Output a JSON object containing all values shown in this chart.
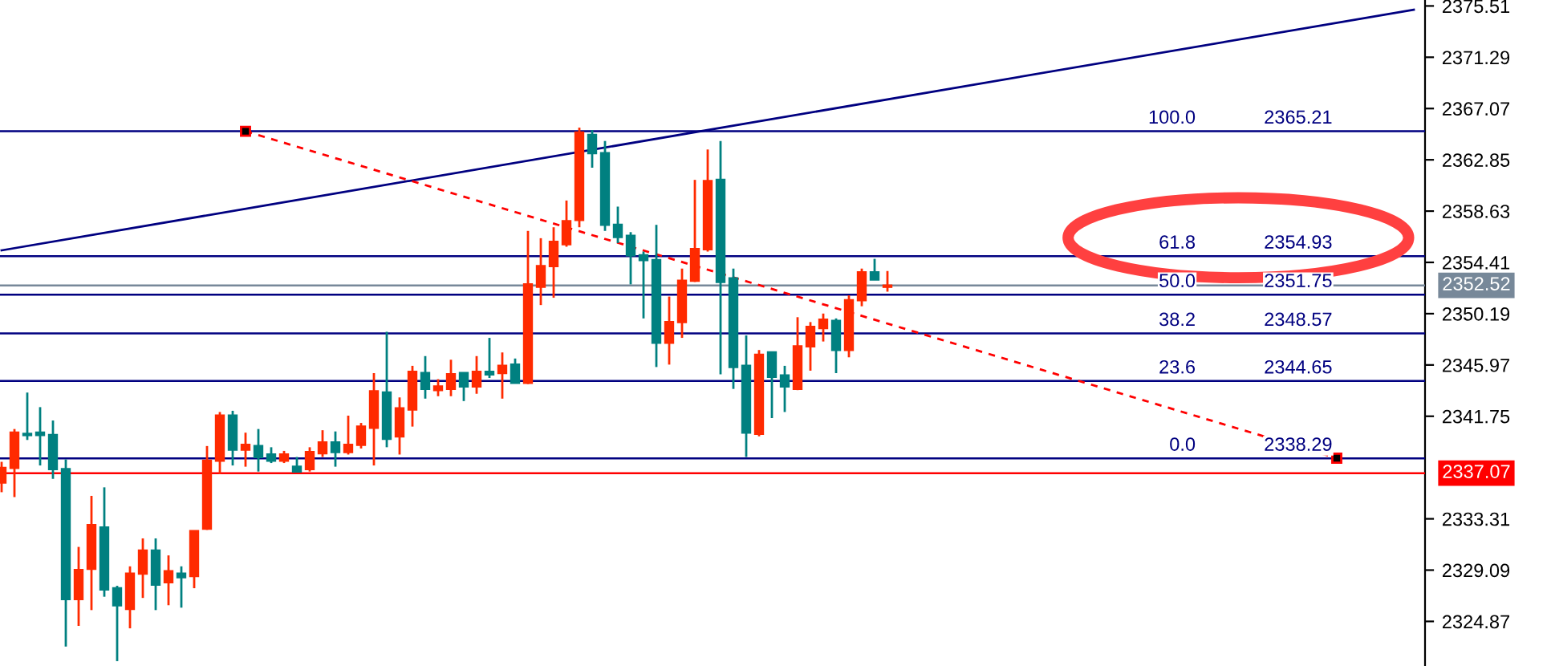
{
  "chart_data": {
    "type": "candlestick",
    "categories": [
      null,
      null,
      null,
      null,
      null,
      null,
      null,
      null,
      null,
      null,
      null,
      null,
      null,
      null,
      null,
      null,
      null,
      null,
      null,
      null,
      null,
      null,
      null,
      null,
      null,
      null,
      null,
      null,
      null,
      null,
      null,
      null,
      null,
      null,
      null,
      null,
      null,
      null,
      null,
      null,
      null,
      null,
      null,
      null,
      null,
      null,
      null,
      null,
      null,
      null,
      null,
      null,
      null,
      null,
      null,
      null,
      null,
      null,
      null,
      null,
      null,
      null,
      null,
      null,
      null,
      null,
      null,
      null,
      null,
      null,
      null,
      null,
      null,
      null,
      null,
      null,
      null,
      null,
      null,
      null,
      null,
      null,
      null,
      null,
      null,
      null,
      null,
      null,
      null,
      null,
      null,
      null,
      null,
      null,
      null,
      null,
      null,
      null,
      null,
      null,
      null,
      null,
      null,
      null,
      null,
      null,
      null,
      null,
      null,
      null,
      null
    ],
    "ohlc": [
      [
        2336.3,
        2338.0,
        2335.5,
        2337.5
      ],
      [
        2337.5,
        2340.7,
        2335.1,
        2340.4
      ],
      [
        2340.3,
        2343.7,
        2339.8,
        2340.2
      ],
      [
        2340.4,
        2342.5,
        2337.7,
        2340.2
      ],
      [
        2340.2,
        2341.4,
        2336.6,
        2337.4
      ],
      [
        2337.4,
        2338.2,
        2322.8,
        2326.7
      ],
      [
        2326.7,
        2331.0,
        2324.5,
        2329.1
      ],
      [
        2329.2,
        2335.2,
        2325.8,
        2332.8
      ],
      [
        2332.6,
        2335.9,
        2326.9,
        2327.5
      ],
      [
        2327.6,
        2327.8,
        2321.6,
        2326.2
      ],
      [
        2325.9,
        2329.4,
        2324.3,
        2328.8
      ],
      [
        2328.8,
        2331.7,
        2326.8,
        2330.7
      ],
      [
        2330.7,
        2331.7,
        2325.8,
        2327.9
      ],
      [
        2328.1,
        2330.3,
        2326.2,
        2329.0
      ],
      [
        2328.8,
        2329.4,
        2326.0,
        2328.5
      ],
      [
        2328.6,
        2332.3,
        2327.6,
        2332.3
      ],
      [
        2332.5,
        2339.3,
        2332.4,
        2338.1
      ],
      [
        2338.1,
        2342.1,
        2337.0,
        2341.8
      ],
      [
        2341.8,
        2342.2,
        2337.7,
        2339.0
      ],
      [
        2339.0,
        2340.4,
        2337.6,
        2339.4
      ],
      [
        2339.3,
        2340.7,
        2337.2,
        2338.4
      ],
      [
        2338.6,
        2339.2,
        2337.9,
        2338.1
      ],
      [
        2338.1,
        2338.9,
        2337.9,
        2338.6
      ],
      [
        2337.6,
        2338.4,
        2337.2,
        2337.2
      ],
      [
        2337.4,
        2339.2,
        2337.2,
        2338.8
      ],
      [
        2338.7,
        2340.6,
        2338.4,
        2339.6
      ],
      [
        2339.6,
        2340.5,
        2337.6,
        2338.8
      ],
      [
        2338.8,
        2341.8,
        2338.6,
        2339.4
      ],
      [
        2339.4,
        2341.2,
        2339.1,
        2340.9
      ],
      [
        2340.8,
        2345.3,
        2337.7,
        2343.8
      ],
      [
        2343.7,
        2348.7,
        2339.2,
        2339.9
      ],
      [
        2340.1,
        2343.3,
        2338.6,
        2342.4
      ],
      [
        2342.3,
        2345.9,
        2340.9,
        2345.4
      ],
      [
        2345.3,
        2346.7,
        2343.2,
        2344.0
      ],
      [
        2343.9,
        2344.8,
        2343.4,
        2344.2
      ],
      [
        2344.0,
        2346.4,
        2343.4,
        2345.2
      ],
      [
        2345.3,
        2345.3,
        2343.0,
        2344.2
      ],
      [
        2344.2,
        2346.7,
        2343.6,
        2345.4
      ],
      [
        2345.4,
        2348.2,
        2344.9,
        2345.2
      ],
      [
        2345.3,
        2347.0,
        2343.2,
        2345.9
      ],
      [
        2346.0,
        2346.5,
        2344.5,
        2344.5
      ],
      [
        2344.5,
        2357.0,
        2344.4,
        2352.6
      ],
      [
        2352.4,
        2356.4,
        2350.9,
        2354.1
      ],
      [
        2354.1,
        2357.3,
        2351.5,
        2356.1
      ],
      [
        2355.9,
        2359.5,
        2355.7,
        2357.8
      ],
      [
        2357.9,
        2365.5,
        2357.3,
        2365.1
      ],
      [
        2364.9,
        2365.3,
        2362.2,
        2363.4
      ],
      [
        2363.4,
        2364.4,
        2357.0,
        2357.5
      ],
      [
        2357.5,
        2359.0,
        2356.0,
        2356.5
      ],
      [
        2356.6,
        2356.9,
        2352.6,
        2355.0
      ],
      [
        2355.0,
        2355.3,
        2349.8,
        2354.6
      ],
      [
        2354.6,
        2357.5,
        2345.8,
        2347.8
      ],
      [
        2347.8,
        2351.6,
        2346.0,
        2349.5
      ],
      [
        2349.5,
        2353.9,
        2348.2,
        2352.9
      ],
      [
        2352.9,
        2361.2,
        2352.8,
        2355.5
      ],
      [
        2355.5,
        2363.7,
        2355.3,
        2361.1
      ],
      [
        2361.2,
        2364.4,
        2345.2,
        2352.8
      ],
      [
        2353.1,
        2353.9,
        2344.0,
        2345.8
      ],
      [
        2345.9,
        2348.4,
        2338.4,
        2340.4
      ],
      [
        2340.3,
        2347.2,
        2340.1,
        2346.8
      ],
      [
        2347.0,
        2347.0,
        2341.6,
        2345.0
      ],
      [
        2345.1,
        2345.9,
        2342.1,
        2344.2
      ],
      [
        2344.0,
        2349.9,
        2343.9,
        2347.5
      ],
      [
        2347.5,
        2349.5,
        2345.5,
        2349.1
      ],
      [
        2349.0,
        2350.2,
        2347.9,
        2349.7
      ],
      [
        2349.6,
        2349.8,
        2345.3,
        2347.2
      ],
      [
        2347.2,
        2351.7,
        2346.6,
        2351.3
      ],
      [
        2351.3,
        2353.9,
        2350.8,
        2353.6
      ],
      [
        2353.6,
        2354.7,
        2353.0,
        2353.0
      ],
      [
        2352.4,
        2353.7,
        2352.0,
        2352.5
      ],
      null,
      null,
      null,
      null,
      null,
      null,
      null,
      null,
      null,
      null,
      null,
      null,
      null,
      null,
      null,
      null,
      null,
      null,
      null,
      null,
      null,
      null,
      null,
      null,
      null,
      null,
      null,
      null,
      null,
      null,
      null,
      null,
      null,
      null,
      null,
      null,
      null,
      null,
      null,
      null,
      null
    ],
    "colors": [
      "#ff2a00",
      "#ff2a00",
      "#008080",
      "#008080",
      "#008080",
      "#008080",
      "#ff2a00",
      "#ff2a00",
      "#008080",
      "#008080",
      "#ff2a00",
      "#ff2a00",
      "#008080",
      "#ff2a00",
      "#008080",
      "#ff2a00",
      "#ff2a00",
      "#ff2a00",
      "#008080",
      "#ff2a00",
      "#008080",
      "#008080",
      "#ff2a00",
      "#008080",
      "#ff2a00",
      "#ff2a00",
      "#008080",
      "#ff2a00",
      "#ff2a00",
      "#ff2a00",
      "#008080",
      "#ff2a00",
      "#ff2a00",
      "#008080",
      "#ff2a00",
      "#ff2a00",
      "#008080",
      "#ff2a00",
      "#008080",
      "#ff2a00",
      "#008080",
      "#ff2a00",
      "#ff2a00",
      "#ff2a00",
      "#ff2a00",
      "#ff2a00",
      "#008080",
      "#008080",
      "#008080",
      "#008080",
      "#008080",
      "#008080",
      "#ff2a00",
      "#ff2a00",
      "#ff2a00",
      "#ff2a00",
      "#008080",
      "#008080",
      "#008080",
      "#ff2a00",
      "#008080",
      "#008080",
      "#ff2a00",
      "#ff2a00",
      "#ff2a00",
      "#008080",
      "#ff2a00",
      "#ff2a00",
      "#008080",
      "#ff2a00",
      null,
      null,
      null,
      null,
      null,
      null,
      null,
      null,
      null,
      null,
      null,
      null,
      null,
      null,
      null,
      null,
      null,
      null,
      null,
      null,
      null,
      null,
      null,
      null,
      null,
      null,
      null,
      null,
      null,
      null,
      null,
      null,
      null,
      null,
      null,
      null,
      null,
      null,
      null,
      null,
      null
    ],
    "series": [
      {
        "type": "line",
        "color": "#000080",
        "line_style": "solid",
        "marker": "none",
        "values": [
          2355.4,
          null,
          null,
          null,
          null,
          null,
          null,
          null,
          null,
          null,
          null,
          null,
          null,
          null,
          null,
          null,
          null,
          null,
          null,
          null,
          null,
          null,
          null,
          null,
          null,
          null,
          null,
          null,
          null,
          null,
          null,
          null,
          null,
          null,
          null,
          null,
          null,
          null,
          null,
          null,
          null,
          null,
          null,
          null,
          null,
          null,
          null,
          null,
          null,
          null,
          null,
          null,
          null,
          null,
          null,
          null,
          null,
          null,
          null,
          null,
          null,
          null,
          null,
          null,
          null,
          null,
          null,
          null,
          null,
          null,
          null,
          null,
          null,
          null,
          null,
          null,
          null,
          null,
          null,
          null,
          null,
          null,
          null,
          null,
          null,
          null,
          null,
          null,
          null,
          null,
          null,
          null,
          null,
          null,
          null,
          null,
          null,
          null,
          null,
          null,
          null,
          null,
          null,
          null,
          null,
          null,
          null,
          null,
          null,
          null,
          2375.2
        ]
      },
      {
        "type": "line",
        "color": "#ff0000",
        "line_style": "dashed",
        "marker": "square",
        "values": [
          null,
          null,
          null,
          null,
          null,
          null,
          null,
          null,
          null,
          null,
          null,
          null,
          null,
          null,
          null,
          null,
          null,
          null,
          null,
          2365.2,
          null,
          null,
          null,
          null,
          null,
          null,
          null,
          null,
          null,
          null,
          null,
          null,
          null,
          null,
          null,
          null,
          null,
          null,
          null,
          null,
          null,
          null,
          null,
          null,
          null,
          null,
          null,
          null,
          null,
          null,
          null,
          null,
          null,
          null,
          null,
          null,
          null,
          null,
          null,
          null,
          null,
          null,
          null,
          null,
          null,
          null,
          null,
          null,
          null,
          null,
          null,
          null,
          null,
          null,
          null,
          null,
          null,
          null,
          null,
          null,
          null,
          null,
          null,
          null,
          null,
          null,
          null,
          null,
          null,
          null,
          null,
          null,
          null,
          null,
          null,
          null,
          null,
          null,
          null,
          null,
          null,
          null,
          null,
          null,
          2338.3,
          null,
          null,
          null,
          null,
          null,
          null
        ]
      }
    ],
    "ref_lines": [
      {
        "axis": "y",
        "value": 2365.21,
        "color": "#000080"
      },
      {
        "axis": "y",
        "value": 2354.93,
        "color": "#000080"
      },
      {
        "axis": "y",
        "value": 2351.75,
        "color": "#000080"
      },
      {
        "axis": "y",
        "value": 2348.57,
        "color": "#000080"
      },
      {
        "axis": "y",
        "value": 2344.65,
        "color": "#000080"
      },
      {
        "axis": "y",
        "value": 2338.29,
        "color": "#000080"
      },
      {
        "axis": "y",
        "value": 2352.52,
        "label": "2352.52",
        "color": "#778899"
      },
      {
        "axis": "y",
        "value": 2337.07,
        "label": "2337.07",
        "color": "#ff0000"
      }
    ],
    "annotations": [
      {
        "text": "100.0",
        "y": 2365.21
      },
      {
        "text": "2365.21",
        "y": 2365.21
      },
      {
        "text": "61.8",
        "y": 2354.93
      },
      {
        "text": "2354.93",
        "y": 2354.93
      },
      {
        "text": "50.0",
        "y": 2351.75
      },
      {
        "text": "2351.75",
        "y": 2351.75
      },
      {
        "text": "38.2",
        "y": 2348.57
      },
      {
        "text": "2348.57",
        "y": 2348.57
      },
      {
        "text": "23.6",
        "y": 2344.65
      },
      {
        "text": "2344.65",
        "y": 2344.65
      },
      {
        "text": "0.0",
        "y": 2338.29
      },
      {
        "text": "2338.29",
        "y": 2338.29
      }
    ],
    "ylim": [
      2321.2,
      2376.0
    ],
    "yticks": [
      2324.87,
      2329.09,
      2333.31,
      2341.75,
      2345.97,
      2350.19,
      2354.41,
      2358.63,
      2362.85,
      2367.07,
      2371.29,
      2375.51
    ],
    "tick_labels": "y",
    "grid": false,
    "legend": false
  }
}
